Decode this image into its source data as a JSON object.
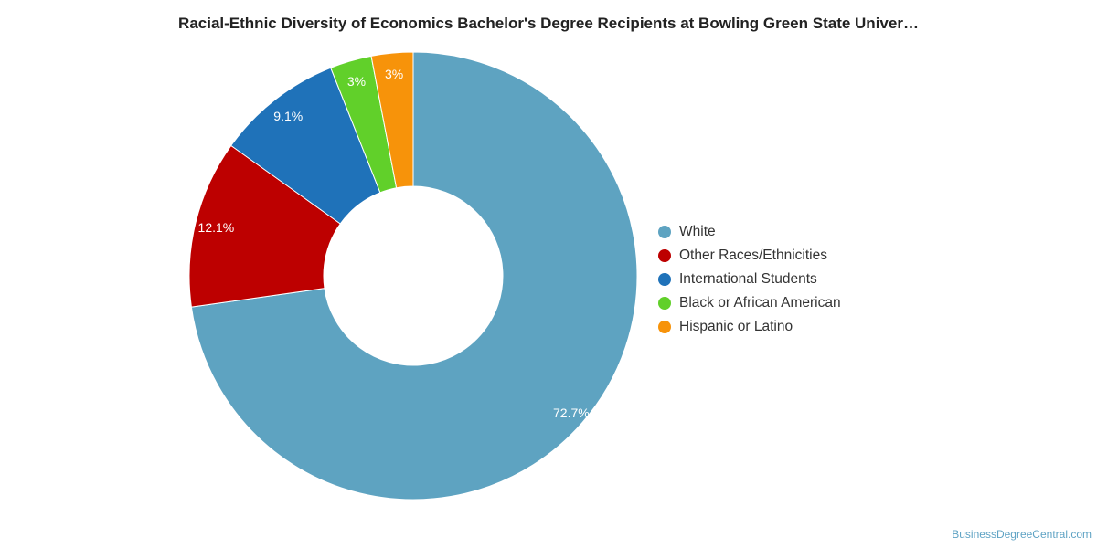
{
  "chart_data": {
    "type": "pie",
    "title": "Racial-Ethnic Diversity of Economics Bachelor's Degree Recipients at Bowling Green State Univer…",
    "legend_position": "right",
    "donut": true,
    "series": [
      {
        "name": "White",
        "value": 72.7,
        "label": "72.7%",
        "color": "#5ea3c1"
      },
      {
        "name": "Other Races/Ethnicities",
        "value": 12.1,
        "label": "12.1%",
        "color": "#bd0000"
      },
      {
        "name": "International Students",
        "value": 9.1,
        "label": "9.1%",
        "color": "#1f72b9"
      },
      {
        "name": "Black or African American",
        "value": 3.0,
        "label": "3%",
        "color": "#61d02a"
      },
      {
        "name": "Hispanic or Latino",
        "value": 3.0,
        "label": "3%",
        "color": "#f7930a"
      }
    ]
  },
  "source_text": "BusinessDegreeCentral.com"
}
